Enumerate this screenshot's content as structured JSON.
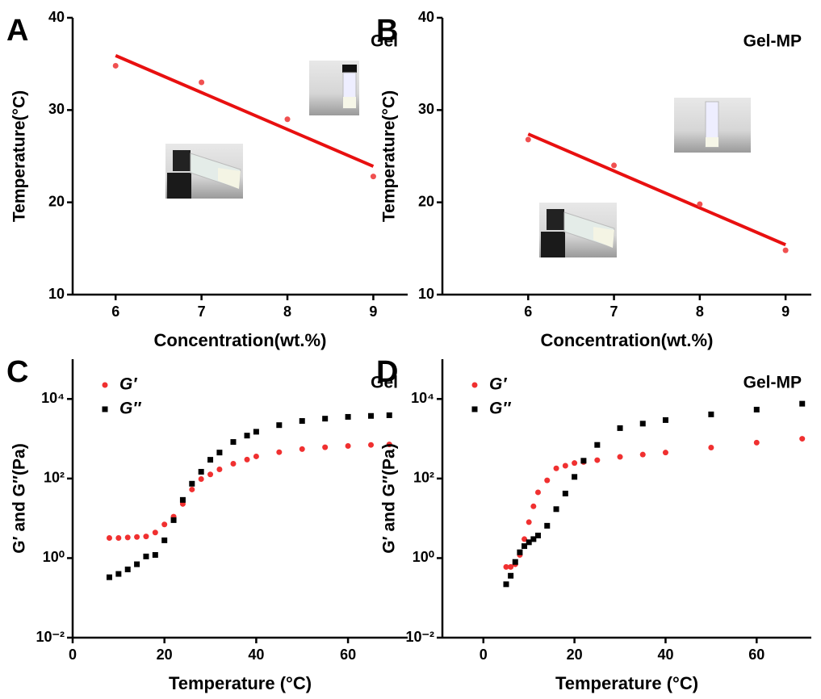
{
  "chart_data": [
    {
      "type": "scatter",
      "panel": "A",
      "title": "Gel",
      "xlabel": "Concentration(wt.%)",
      "ylabel": "Temperature(°C)",
      "x": [
        6,
        7,
        8,
        9
      ],
      "values": [
        34.8,
        33,
        29,
        22.8
      ],
      "color": "#f05050",
      "fit": {
        "x": [
          6,
          9
        ],
        "values": [
          35.9,
          23.9
        ],
        "color": "#e81010"
      },
      "xlim": [
        5.5,
        9.4
      ],
      "xticks": [
        6,
        7,
        8,
        9
      ],
      "ylim": [
        10,
        40
      ],
      "yticks": [
        10,
        20,
        30,
        40
      ]
    },
    {
      "type": "scatter",
      "panel": "B",
      "title": "Gel-MP",
      "xlabel": "Concentration(wt.%)",
      "ylabel": "Temperature(°C)",
      "x": [
        6,
        7,
        8,
        9
      ],
      "values": [
        26.8,
        24,
        19.8,
        14.8
      ],
      "color": "#f05050",
      "fit": {
        "x": [
          6,
          9
        ],
        "values": [
          27.4,
          15.4
        ],
        "color": "#e81010"
      },
      "xlim": [
        5,
        9.3
      ],
      "xticks": [
        6,
        7,
        8,
        9
      ],
      "ylim": [
        10,
        40
      ],
      "yticks": [
        10,
        20,
        30,
        40
      ]
    },
    {
      "type": "scatter",
      "panel": "C",
      "title": "Gel",
      "xlabel": "Temperature (°C)",
      "ylabel": "G′ and G″(Pa)",
      "ylog": true,
      "legend": "upper left",
      "x": [
        8,
        10,
        12,
        14,
        16,
        18,
        20,
        22,
        24,
        26,
        28,
        30,
        32,
        35,
        38,
        40,
        45,
        50,
        55,
        60,
        65,
        69
      ],
      "series": [
        {
          "name": "G′",
          "color": "#f03030",
          "marker": "circle",
          "values": [
            3.2,
            3.2,
            3.3,
            3.4,
            3.5,
            4.4,
            7,
            11,
            23,
            53,
            97,
            127,
            170,
            236,
            300,
            360,
            460,
            550,
            610,
            660,
            700,
            720
          ]
        },
        {
          "name": "G″",
          "color": "#000000",
          "marker": "square",
          "values": [
            0.33,
            0.4,
            0.52,
            0.7,
            1.1,
            1.2,
            2.8,
            9,
            29,
            74,
            148,
            296,
            450,
            830,
            1200,
            1500,
            2200,
            2800,
            3200,
            3550,
            3750,
            3900
          ]
        }
      ],
      "xlim": [
        0,
        73
      ],
      "xticks": [
        0,
        20,
        40,
        60
      ],
      "ylim": [
        0.01,
        100000
      ],
      "yticks": [
        {
          "value": 0.01,
          "label": "10⁻²"
        },
        {
          "value": 1,
          "label": "10⁰"
        },
        {
          "value": 100,
          "label": "10²"
        },
        {
          "value": 10000,
          "label": "10⁴"
        }
      ]
    },
    {
      "type": "scatter",
      "panel": "D",
      "title": "Gel-MP",
      "xlabel": "Temperature (°C)",
      "ylabel": "G′ and G″(Pa)",
      "ylog": true,
      "legend": "upper left",
      "x": [
        5,
        6,
        7,
        8,
        9,
        10,
        11,
        12,
        14,
        16,
        18,
        20,
        22,
        25,
        30,
        35,
        40,
        50,
        60,
        70
      ],
      "series": [
        {
          "name": "G′",
          "color": "#f03030",
          "marker": "circle",
          "values": [
            0.6,
            0.6,
            0.7,
            1.2,
            3,
            8,
            20,
            45,
            90,
            180,
            210,
            245,
            260,
            290,
            350,
            400,
            450,
            600,
            800,
            1000
          ]
        },
        {
          "name": "G″",
          "color": "#000000",
          "marker": "square",
          "values": [
            0.22,
            0.36,
            0.8,
            1.4,
            2,
            2.5,
            3,
            3.7,
            6.5,
            17,
            42,
            110,
            280,
            700,
            1850,
            2400,
            2950,
            4100,
            5400,
            7600
          ]
        }
      ],
      "xlim": [
        -9,
        72
      ],
      "xticks": [
        0,
        20,
        40,
        60
      ],
      "ylim": [
        0.01,
        100000
      ],
      "yticks": [
        {
          "value": 0.01,
          "label": "10⁻²"
        },
        {
          "value": 1,
          "label": "10⁰"
        },
        {
          "value": 100,
          "label": "10²"
        },
        {
          "value": 10000,
          "label": "10⁴"
        }
      ]
    }
  ]
}
